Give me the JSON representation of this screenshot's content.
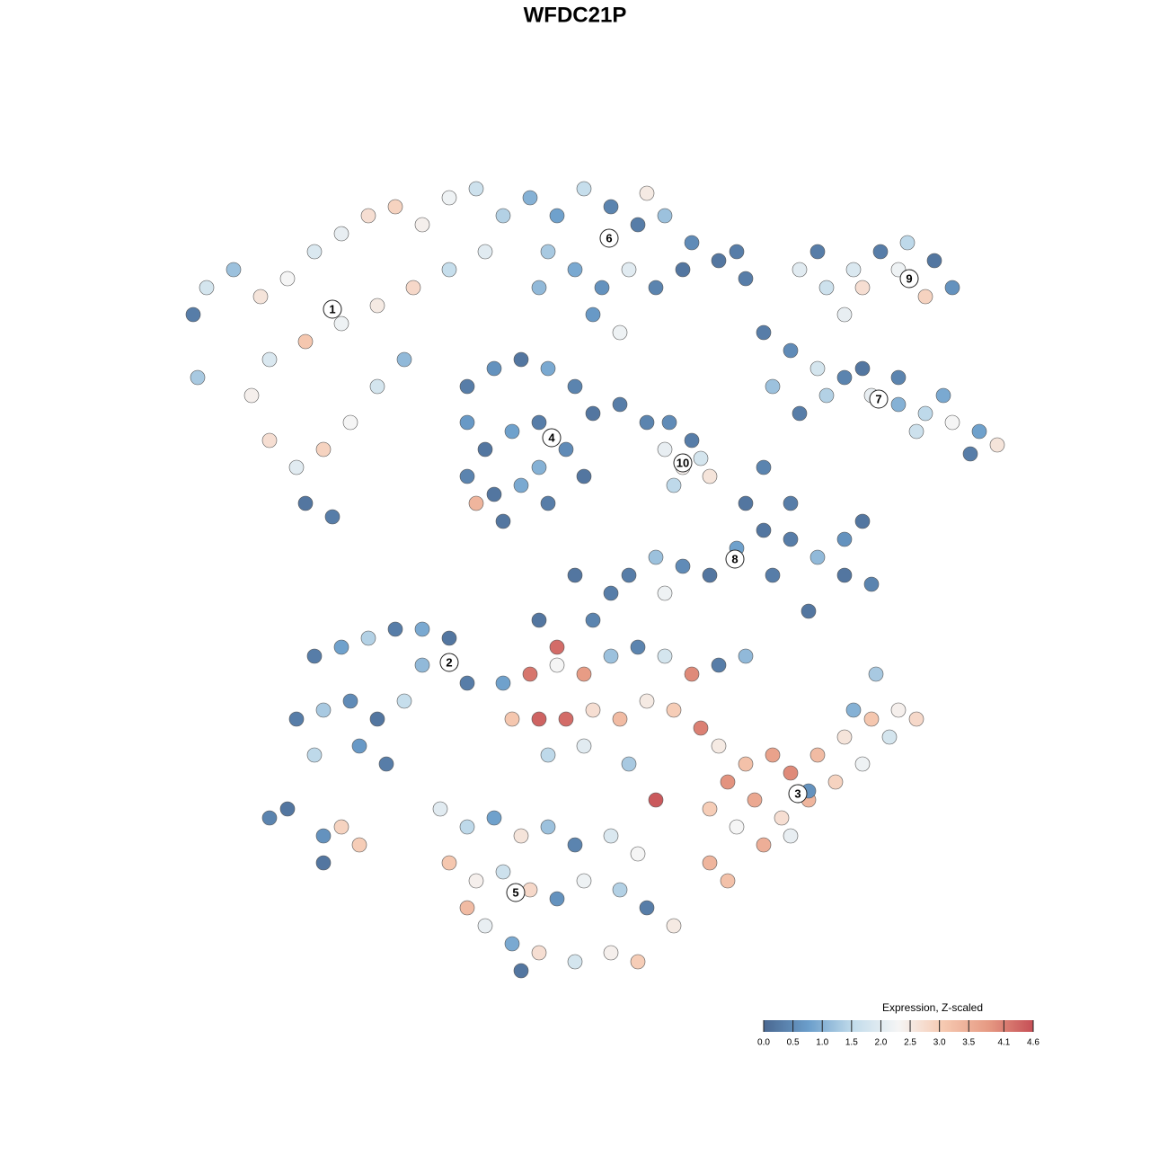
{
  "chart_data": {
    "type": "scatter",
    "title": "WFDC21P",
    "xlim": [
      200,
      1130
    ],
    "ylim": [
      1095,
      180
    ],
    "x": [
      230,
      215,
      260,
      290,
      320,
      350,
      380,
      410,
      440,
      470,
      500,
      530,
      560,
      540,
      500,
      460,
      420,
      380,
      340,
      300,
      280,
      300,
      330,
      360,
      390,
      420,
      450,
      340,
      370,
      220,
      590,
      620,
      650,
      680,
      710,
      740,
      770,
      800,
      830,
      610,
      640,
      670,
      700,
      730,
      760,
      600,
      690,
      660,
      720,
      820,
      890,
      920,
      950,
      980,
      1010,
      1040,
      1060,
      1030,
      960,
      910,
      1000,
      940,
      850,
      880,
      910,
      940,
      970,
      1000,
      1030,
      1060,
      1090,
      1110,
      1080,
      1020,
      960,
      860,
      890,
      1050,
      1000,
      920,
      520,
      550,
      580,
      610,
      640,
      660,
      520,
      540,
      570,
      600,
      630,
      650,
      520,
      550,
      580,
      610,
      530,
      560,
      600,
      690,
      740,
      760,
      780,
      750,
      770,
      790,
      720,
      745,
      700,
      730,
      760,
      790,
      820,
      850,
      880,
      910,
      940,
      970,
      900,
      860,
      830,
      850,
      880,
      940,
      960,
      740,
      680,
      640,
      350,
      380,
      410,
      440,
      470,
      500,
      330,
      360,
      390,
      420,
      450,
      400,
      430,
      350,
      300,
      320,
      360,
      380,
      400,
      520,
      470,
      360,
      560,
      590,
      620,
      650,
      680,
      710,
      740,
      770,
      800,
      830,
      570,
      600,
      630,
      660,
      690,
      720,
      750,
      780,
      610,
      650,
      700,
      730,
      620,
      600,
      660,
      800,
      830,
      860,
      880,
      910,
      940,
      970,
      1000,
      1020,
      990,
      960,
      930,
      900,
      870,
      840,
      810,
      790,
      820,
      850,
      880,
      790,
      810,
      900,
      950,
      975,
      490,
      520,
      550,
      580,
      610,
      640,
      680,
      710,
      500,
      530,
      560,
      590,
      620,
      650,
      690,
      720,
      750,
      540,
      570,
      600,
      640,
      680,
      710,
      580,
      520
    ],
    "y": [
      320,
      350,
      300,
      330,
      310,
      280,
      260,
      240,
      230,
      250,
      220,
      210,
      240,
      280,
      300,
      320,
      340,
      360,
      380,
      400,
      440,
      490,
      520,
      500,
      470,
      430,
      400,
      560,
      575,
      420,
      220,
      240,
      210,
      230,
      250,
      240,
      270,
      290,
      310,
      280,
      300,
      320,
      300,
      320,
      300,
      320,
      370,
      350,
      215,
      280,
      300,
      320,
      300,
      280,
      270,
      290,
      320,
      330,
      320,
      280,
      300,
      350,
      370,
      390,
      410,
      420,
      440,
      450,
      460,
      470,
      480,
      495,
      505,
      480,
      410,
      430,
      460,
      440,
      420,
      440,
      430,
      410,
      400,
      410,
      430,
      460,
      470,
      500,
      480,
      470,
      500,
      530,
      530,
      550,
      540,
      560,
      560,
      580,
      520,
      450,
      500,
      520,
      510,
      540,
      490,
      530,
      470,
      470,
      640,
      620,
      630,
      640,
      610,
      590,
      600,
      620,
      640,
      650,
      680,
      640,
      560,
      520,
      560,
      600,
      580,
      660,
      660,
      640,
      730,
      720,
      710,
      700,
      700,
      710,
      800,
      790,
      780,
      800,
      780,
      830,
      850,
      840,
      910,
      900,
      930,
      920,
      940,
      760,
      740,
      960,
      760,
      750,
      740,
      750,
      730,
      720,
      730,
      750,
      740,
      730,
      800,
      800,
      800,
      790,
      800,
      780,
      790,
      810,
      840,
      830,
      850,
      890,
      720,
      690,
      690,
      830,
      850,
      840,
      860,
      840,
      820,
      800,
      790,
      800,
      820,
      850,
      870,
      890,
      910,
      890,
      870,
      900,
      920,
      940,
      930,
      960,
      980,
      880,
      790,
      750,
      900,
      920,
      910,
      930,
      920,
      940,
      930,
      950,
      960,
      980,
      970,
      990,
      1000,
      980,
      990,
      1010,
      1030,
      1030,
      1050,
      1060,
      1070,
      1060,
      1070,
      1080,
      1010
    ],
    "values": [
      1.8,
      0.3,
      1.2,
      2.6,
      2.3,
      1.9,
      2.1,
      2.7,
      2.9,
      2.4,
      2.2,
      1.7,
      1.4,
      2.0,
      1.6,
      2.8,
      2.5,
      2.2,
      3.1,
      1.9,
      2.4,
      2.7,
      2.0,
      2.9,
      2.3,
      1.8,
      1.1,
      0.2,
      0.3,
      1.3,
      1.0,
      0.8,
      1.6,
      0.4,
      0.3,
      1.2,
      0.5,
      0.2,
      0.3,
      1.3,
      0.9,
      0.6,
      2.0,
      0.4,
      0.2,
      1.1,
      2.2,
      0.7,
      2.5,
      0.3,
      2.0,
      1.7,
      1.9,
      0.3,
      1.5,
      0.2,
      0.6,
      2.9,
      2.7,
      0.3,
      2.2,
      2.1,
      0.3,
      0.5,
      1.8,
      0.4,
      2.1,
      1.0,
      1.5,
      2.3,
      0.8,
      2.6,
      0.3,
      1.7,
      0.2,
      1.2,
      0.3,
      0.9,
      0.4,
      1.4,
      0.3,
      0.6,
      0.2,
      0.9,
      0.4,
      0.2,
      0.7,
      0.2,
      0.8,
      0.3,
      0.5,
      0.2,
      0.4,
      0.2,
      0.9,
      0.3,
      3.4,
      0.2,
      1.0,
      0.3,
      2.1,
      2.4,
      1.8,
      1.5,
      0.3,
      2.6,
      0.4,
      0.5,
      0.3,
      1.2,
      0.5,
      0.2,
      0.8,
      0.2,
      0.3,
      1.1,
      0.2,
      0.4,
      0.2,
      0.3,
      0.2,
      0.4,
      0.3,
      0.6,
      0.2,
      2.2,
      0.3,
      0.2,
      0.3,
      0.8,
      1.4,
      0.3,
      0.9,
      0.2,
      0.3,
      1.3,
      0.5,
      0.2,
      1.6,
      0.7,
      0.3,
      1.5,
      0.4,
      0.2,
      0.6,
      2.9,
      3.0,
      0.3,
      1.1,
      0.2,
      0.8,
      4.2,
      2.3,
      3.8,
      1.2,
      0.4,
      1.8,
      4.0,
      0.3,
      1.1,
      3.1,
      4.4,
      4.3,
      2.7,
      3.3,
      2.5,
      3.0,
      4.1,
      1.5,
      2.0,
      1.3,
      4.5,
      4.3,
      0.2,
      0.4,
      2.5,
      3.2,
      3.7,
      4.0,
      3.3,
      2.6,
      3.1,
      2.4,
      2.8,
      1.8,
      2.2,
      2.9,
      3.4,
      2.7,
      3.6,
      3.9,
      3.0,
      2.3,
      3.5,
      2.1,
      3.4,
      3.2,
      0.6,
      1.0,
      1.3,
      2.0,
      1.5,
      0.8,
      2.6,
      1.2,
      0.4,
      1.9,
      2.3,
      3.1,
      2.4,
      1.7,
      2.8,
      0.6,
      2.2,
      1.4,
      0.3,
      2.5,
      2.1,
      0.9,
      2.7,
      1.8,
      2.4,
      3.0,
      0.2,
      3.3
    ],
    "clusters": {
      "labels": [
        "1",
        "2",
        "3",
        "4",
        "5",
        "6",
        "7",
        "8",
        "9",
        "10"
      ],
      "x": [
        370,
        500,
        888,
        614,
        574,
        678,
        978,
        818,
        1012,
        760
      ],
      "y": [
        344,
        737,
        883,
        487,
        993,
        265,
        444,
        622,
        310,
        515
      ]
    },
    "colorbar": {
      "title": "Expression, Z-scaled",
      "lim": [
        0,
        4.6
      ],
      "ticks": [
        {
          "value": 0,
          "label": "0.0"
        },
        0.5,
        {
          "value": 1,
          "label": "1.0"
        },
        1.5,
        {
          "value": 2,
          "label": "2.0"
        },
        2.5,
        {
          "value": 3,
          "label": "3.0"
        },
        3.5,
        4.1,
        4.6
      ],
      "colors": [
        "#4a6891",
        "#6b9ecb",
        "#c2dceb",
        "#f5f5f5",
        "#f6c9b1",
        "#e69a83",
        "#c64f56"
      ]
    }
  }
}
